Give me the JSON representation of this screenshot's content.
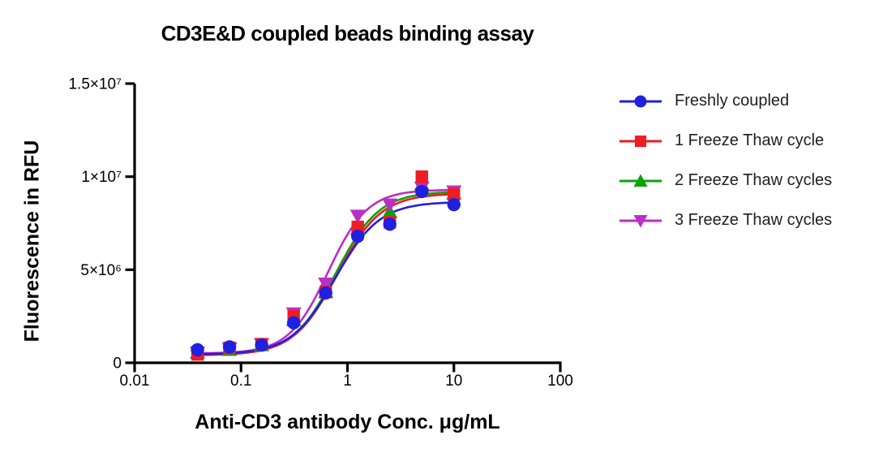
{
  "chart_data": {
    "type": "scatter",
    "subtype": "dose-response-sigmoidal-fit",
    "title": "CD3E&D coupled beads binding assay",
    "xlabel": "Anti-CD3 antibody Conc. μg/mL",
    "ylabel": "Fluorescence in RFU",
    "x_scale": "log10",
    "xlim": [
      0.01,
      100
    ],
    "ylim": [
      0,
      15000000
    ],
    "grid": false,
    "legend_position": "right",
    "x_ticks": [
      {
        "value": 0.01,
        "label": "0.01"
      },
      {
        "value": 0.1,
        "label": "0.1"
      },
      {
        "value": 1,
        "label": "1"
      },
      {
        "value": 10,
        "label": "10"
      },
      {
        "value": 100,
        "label": "100"
      }
    ],
    "y_ticks": [
      {
        "value": 0,
        "label": "0"
      },
      {
        "value": 5000000,
        "label": "5×10⁶"
      },
      {
        "value": 10000000,
        "label": "1×10⁷"
      },
      {
        "value": 15000000,
        "label": "1.5×10⁷"
      }
    ],
    "x": [
      0.039,
      0.078,
      0.156,
      0.3125,
      0.625,
      1.25,
      2.5,
      5,
      10
    ],
    "series": [
      {
        "name": "Freshly coupled",
        "color": "#2020df",
        "marker": "circle",
        "values": [
          700000,
          850000,
          950000,
          2150000,
          3750000,
          6800000,
          7450000,
          9200000,
          8500000
        ],
        "fit": {
          "bottom": 450000,
          "top": 8650000,
          "ec50": 0.77,
          "hill": 2.1
        }
      },
      {
        "name": "1 Freeze Thaw cycle",
        "color": "#ee1d23",
        "marker": "square",
        "values": [
          450000,
          800000,
          1000000,
          2500000,
          3800000,
          7300000,
          7550000,
          10000000,
          9050000
        ],
        "fit": {
          "bottom": 400000,
          "top": 9100000,
          "ec50": 0.8,
          "hill": 2.1
        }
      },
      {
        "name": "2 Freeze Thaw cycles",
        "color": "#0ba30b",
        "marker": "triangle-up",
        "values": [
          550000,
          700000,
          950000,
          2300000,
          3800000,
          7200000,
          8100000,
          9600000,
          9100000
        ],
        "fit": {
          "bottom": 450000,
          "top": 9200000,
          "ec50": 0.78,
          "hill": 2.15
        }
      },
      {
        "name": "3 Freeze Thaw cycles",
        "color": "#bb2fc4",
        "marker": "triangle-down",
        "values": [
          550000,
          750000,
          1000000,
          2650000,
          4250000,
          7900000,
          8500000,
          9400000,
          9200000
        ],
        "fit": {
          "bottom": 500000,
          "top": 9300000,
          "ec50": 0.66,
          "hill": 2.35
        }
      }
    ]
  }
}
